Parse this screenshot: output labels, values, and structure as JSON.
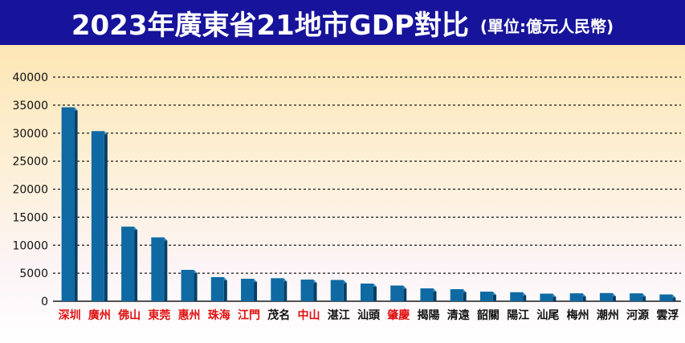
{
  "title": "2023年廣東省21地市GDP對比",
  "subtitle": "(單位:億元人民幣)",
  "colors": {
    "title_bg": "#17139a",
    "bar_front": "#0f6aa3",
    "bar_side": "#063f66",
    "highlight_label": "#e01010",
    "normal_label": "#111111"
  },
  "chart_data": {
    "type": "bar",
    "title": "2023年廣東省21地市GDP對比",
    "subtitle": "(單位:億元人民幣)",
    "xlabel": "",
    "ylabel": "",
    "ylim": [
      0,
      40000
    ],
    "yticks": [
      0,
      5000,
      10000,
      15000,
      20000,
      25000,
      30000,
      35000,
      40000
    ],
    "grid": true,
    "legend": "none",
    "categories": [
      "深圳",
      "廣州",
      "佛山",
      "東莞",
      "惠州",
      "珠海",
      "江門",
      "茂名",
      "中山",
      "湛江",
      "汕頭",
      "肇慶",
      "揭陽",
      "清遠",
      "韶關",
      "陽江",
      "汕尾",
      "梅州",
      "潮州",
      "河源",
      "雲浮"
    ],
    "values": [
      34600,
      30350,
      13300,
      11400,
      5600,
      4300,
      4000,
      4100,
      3850,
      3800,
      3150,
      2800,
      2300,
      2150,
      1700,
      1600,
      1350,
      1400,
      1450,
      1400,
      1200
    ],
    "highlighted": [
      true,
      true,
      true,
      true,
      true,
      true,
      true,
      false,
      true,
      false,
      false,
      true,
      false,
      false,
      false,
      false,
      false,
      false,
      false,
      false,
      false
    ]
  }
}
